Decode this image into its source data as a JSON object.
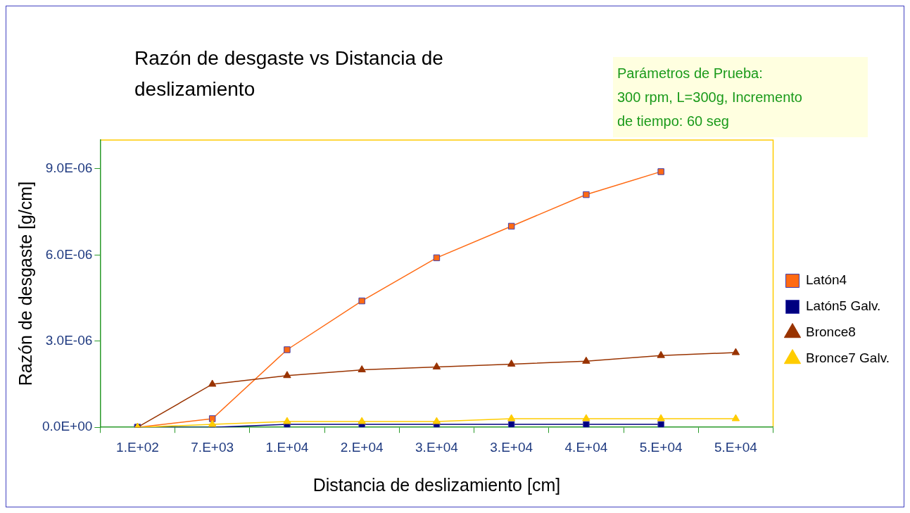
{
  "chart_data": {
    "type": "line",
    "title": "Razón de desgaste vs Distancia de deslizamiento",
    "xlabel": "Distancia de deslizamiento [cm]",
    "ylabel": "Razón de desgaste [g/cm]",
    "annotations": [
      "Parámetros de Prueba:\n300 rpm, L=300g,   Incremento\nde tiempo: 60 seg"
    ],
    "categories": [
      "1.E+02",
      "7.E+03",
      "1.E+04",
      "2.E+04",
      "3.E+04",
      "3.E+04",
      "4.E+04",
      "5.E+04",
      "5.E+04"
    ],
    "series": [
      {
        "name": "Latón4",
        "color": "#ff6a13",
        "marker": "square",
        "values": [
          0,
          3e-07,
          2.7e-06,
          4.4e-06,
          5.9e-06,
          7e-06,
          8.1e-06,
          8.9e-06,
          null
        ]
      },
      {
        "name": "Latón5 Galv.",
        "color": "#000080",
        "marker": "square",
        "values": [
          0,
          0,
          1e-07,
          1e-07,
          1e-07,
          1e-07,
          1e-07,
          1e-07,
          null
        ]
      },
      {
        "name": "Bronce8",
        "color": "#993300",
        "marker": "triangle",
        "values": [
          0,
          1.5e-06,
          1.8e-06,
          2e-06,
          2.1e-06,
          2.2e-06,
          2.3e-06,
          2.5e-06,
          2.6e-06
        ]
      },
      {
        "name": "Bronce7 Galv.",
        "color": "#ffcc00",
        "marker": "triangle",
        "values": [
          0,
          1e-07,
          2e-07,
          2e-07,
          2e-07,
          3e-07,
          3e-07,
          3e-07,
          3e-07
        ]
      }
    ],
    "ylim": [
      0,
      1e-05
    ],
    "yticks": [
      {
        "value": 0,
        "label": "0.0E+00"
      },
      {
        "value": 3e-06,
        "label": "3.0E-06"
      },
      {
        "value": 6e-06,
        "label": "6.0E-06"
      },
      {
        "value": 9e-06,
        "label": "9.0E-06"
      }
    ],
    "legend": "right"
  }
}
